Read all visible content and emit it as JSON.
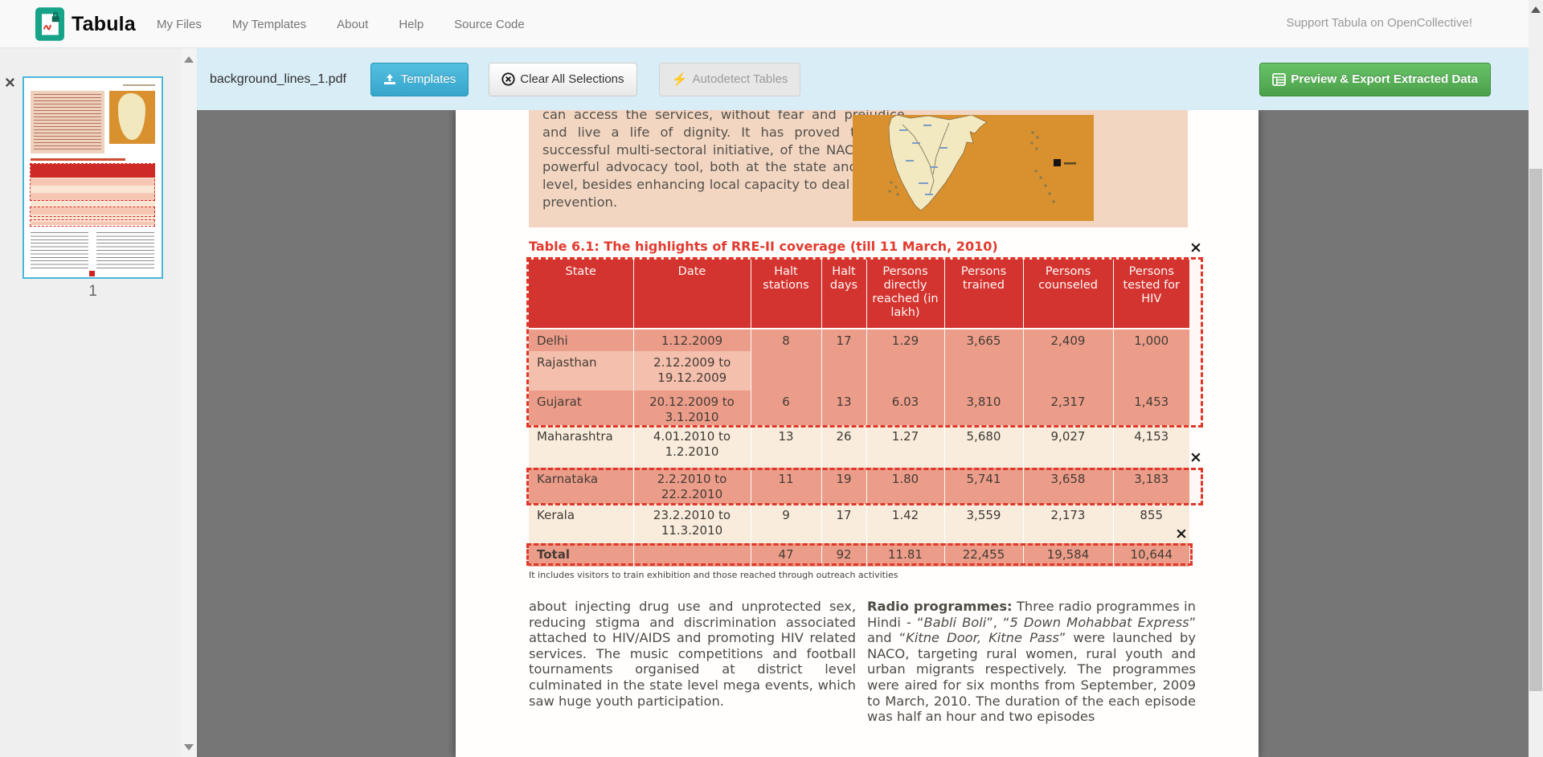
{
  "navbar": {
    "brand": "Tabula",
    "links": [
      "My Files",
      "My Templates",
      "About",
      "Help",
      "Source Code"
    ],
    "support": "Support Tabula on OpenCollective!"
  },
  "toolbar": {
    "filename": "background_lines_1.pdf",
    "templates": "Templates",
    "clear": "Clear All Selections",
    "autodetect": "Autodetect Tables",
    "export": "Preview & Export Extracted Data"
  },
  "sidebar": {
    "close_glyph": "×",
    "page_label": "1"
  },
  "icons": {
    "autodetect_bolt": "⚡",
    "selection_close": "×"
  },
  "colors": {
    "toolbar_bg": "#d9edf7",
    "button_teal": "#41b0d5",
    "button_green": "#55aa55",
    "selection_red": "#df372a",
    "table_header_red": "#d33230",
    "selected_row": "#eba08e",
    "page_peach": "#f2d6c2",
    "map_orange": "#d9912f",
    "workspace_gray": "#767676"
  },
  "pdf": {
    "intro_paragraph": "can access the services, without fear and prejudice, and live a life of dignity. It has proved to be a successful multi-sectoral initiative, of the NACO and a powerful advocacy tool, both at the state and district level, besides enhancing local capacity to deal with HIV prevention.",
    "table_title": "Table 6.1: The highlights of RRE-II coverage (till 11 March, 2010)",
    "table": {
      "headers": [
        "State",
        "Date",
        "Halt stations",
        "Halt days",
        "Persons directly reached (in lakh)",
        "Persons trained",
        "Persons counseled",
        "Persons tested for HIV"
      ],
      "rows": [
        {
          "state": "Delhi",
          "date": "1.12.2009",
          "halt_stations": "8",
          "halt_days": "17",
          "persons_reached": "1.29",
          "persons_trained": "3,665",
          "persons_counseled": "2,409",
          "persons_tested": "1,000"
        },
        {
          "state": "Rajasthan",
          "date": "2.12.2009 to 19.12.2009"
        },
        {
          "state": "Gujarat",
          "date": "20.12.2009 to 3.1.2010",
          "halt_stations": "6",
          "halt_days": "13",
          "persons_reached": "6.03",
          "persons_trained": "3,810",
          "persons_counseled": "2,317",
          "persons_tested": "1,453"
        },
        {
          "state": "Maharashtra",
          "date": "4.01.2010 to 1.2.2010",
          "halt_stations": "13",
          "halt_days": "26",
          "persons_reached": "1.27",
          "persons_trained": "5,680",
          "persons_counseled": "9,027",
          "persons_tested": "4,153"
        },
        {
          "state": "Karnataka",
          "date": "2.2.2010 to 22.2.2010",
          "halt_stations": "11",
          "halt_days": "19",
          "persons_reached": "1.80",
          "persons_trained": "5,741",
          "persons_counseled": "3,658",
          "persons_tested": "3,183"
        },
        {
          "state": "Kerala",
          "date": "23.2.2010 to 11.3.2010",
          "halt_stations": "9",
          "halt_days": "17",
          "persons_reached": "1.42",
          "persons_trained": "3,559",
          "persons_counseled": "2,173",
          "persons_tested": "855"
        },
        {
          "state": "Total",
          "date": "",
          "halt_stations": "47",
          "halt_days": "92",
          "persons_reached": "11.81",
          "persons_trained": "22,455",
          "persons_counseled": "19,584",
          "persons_tested": "10,644"
        }
      ]
    },
    "footnote": "It includes visitors to train exhibition and those reached through outreach activities",
    "left_column": "about injecting drug use and unprotected sex, reducing stigma and discrimination associated attached to HIV/AIDS and promoting HIV related services. The music competitions and football tournaments organised at district level culminated in the state level mega events, which saw huge youth participation.",
    "right_column_segments": [
      {
        "text": "Radio programmes:",
        "style": "bold"
      },
      {
        "text": " Three radio programmes in Hindi - “",
        "style": "normal"
      },
      {
        "text": "Babli Boli",
        "style": "italic"
      },
      {
        "text": "”, “",
        "style": "normal"
      },
      {
        "text": "5 Down Mohabbat Express",
        "style": "italic"
      },
      {
        "text": "” and “",
        "style": "normal"
      },
      {
        "text": "Kitne Door, Kitne Pass",
        "style": "italic"
      },
      {
        "text": "” were launched by NACO, targeting rural women, rural youth and urban migrants respectively. The programmes were aired for six months from September, 2009 to March, 2010. The duration of the each episode was half an hour and two episodes",
        "style": "normal"
      }
    ]
  }
}
